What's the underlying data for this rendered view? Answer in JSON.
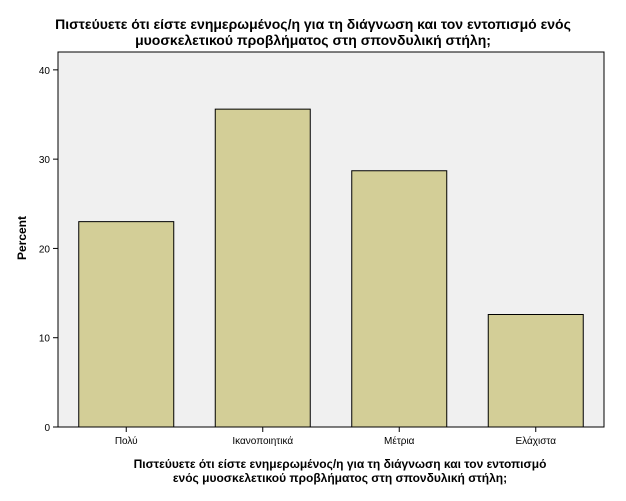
{
  "chart_data": {
    "type": "bar",
    "title_lines": [
      "Πιστεύυετε ότι είστε ενημερωμένος/η για τη διάγνωση και τον εντοπισμό ενός",
      "μυοσκελετικού προβλήματος στη σπονδυλική στήλη;"
    ],
    "xlabel_lines": [
      "Πιστεύυετε ότι είστε ενημερωμένος/η για τη διάγνωση και τον εντοπισμό",
      "ενός μυοσκελετικού προβλήματος στη σπονδυλική στήλη;"
    ],
    "ylabel": "Percent",
    "categories": [
      "Πολύ",
      "Ικανοποιητικά",
      "Μέτρια",
      "Ελάχιστα"
    ],
    "values": [
      23.0,
      35.6,
      28.7,
      12.6
    ],
    "ylim": [
      0,
      42
    ],
    "yticks": [
      0,
      10,
      20,
      30,
      40
    ],
    "grid": false,
    "bar_color": "#d3ce97",
    "plot_background": "#f0f0f0"
  }
}
